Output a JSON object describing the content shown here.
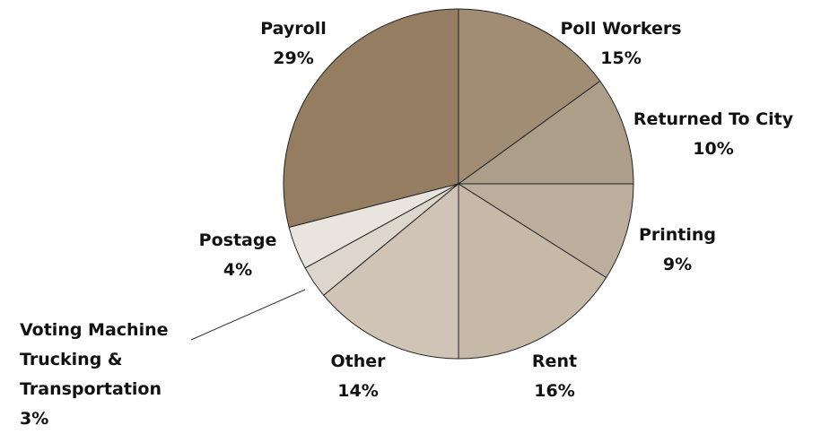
{
  "chart_data": {
    "type": "pie",
    "categories": [
      "Poll Workers",
      "Returned To City",
      "Printing",
      "Rent",
      "Other",
      "Voting Machine Trucking & Transportation",
      "Postage",
      "Payroll"
    ],
    "values": [
      15,
      10,
      9,
      16,
      14,
      3,
      4,
      29
    ],
    "value_labels": [
      "15%",
      "10%",
      "9%",
      "16%",
      "14%",
      "3%",
      "4%",
      "29%"
    ],
    "colors": [
      "#a08d74",
      "#ad9e8a",
      "#bcae9c",
      "#c6b9a8",
      "#cfc4b5",
      "#ddd6cc",
      "#e9e5de",
      "#957d62"
    ]
  }
}
